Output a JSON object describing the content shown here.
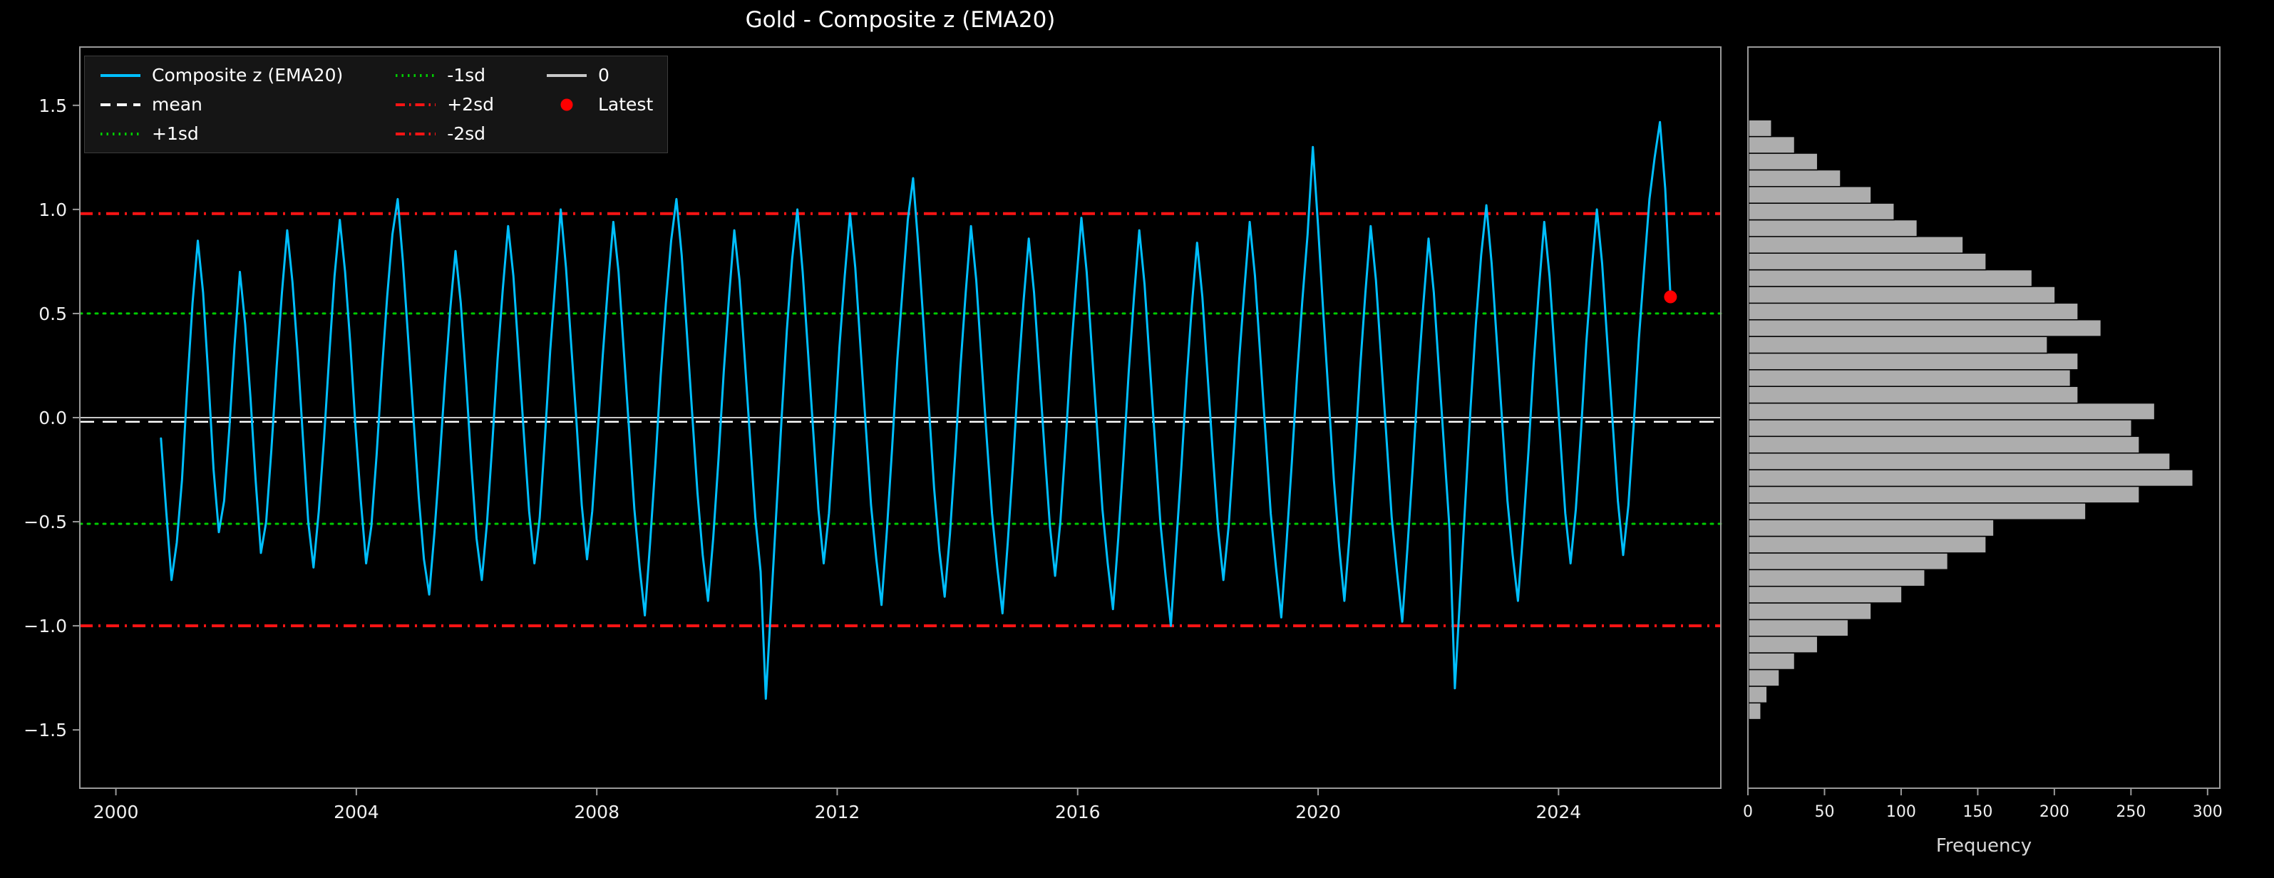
{
  "title": "Gold - Composite z (EMA20)",
  "colors": {
    "background": "#000000",
    "series": "#00BFFF",
    "mean": "#ffffff",
    "sd1": "#00cc00",
    "sd2": "#ff1414",
    "zero": "#c8c8c8",
    "latest": "#ff0000",
    "hist_fill": "#adadad",
    "hist_edge": "#000000",
    "axis": "#999999",
    "tick_text": "#f0f0f0"
  },
  "legend": {
    "items": [
      {
        "label": "Composite z (EMA20)",
        "style": "solid",
        "color": "#00BFFF"
      },
      {
        "label": "mean",
        "style": "dashed",
        "color": "#ffffff"
      },
      {
        "label": "+1sd",
        "style": "dotted",
        "color": "#00cc00"
      },
      {
        "label": "-1sd",
        "style": "dotted",
        "color": "#00cc00"
      },
      {
        "label": "+2sd",
        "style": "dashdot",
        "color": "#ff1414"
      },
      {
        "label": "-2sd",
        "style": "dashdot",
        "color": "#ff1414"
      },
      {
        "label": "0",
        "style": "solid",
        "color": "#c8c8c8"
      },
      {
        "label": "Latest",
        "style": "marker",
        "color": "#ff0000"
      }
    ]
  },
  "chart_data": [
    {
      "type": "line",
      "title": "Gold - Composite z (EMA20)",
      "series_name": "Composite z (EMA20)",
      "x_start": 2000.75,
      "x_step": 0.0875,
      "xlim": [
        1999.4,
        2026.7
      ],
      "ylim": [
        -1.78,
        1.78
      ],
      "x_ticks": [
        2000,
        2004,
        2008,
        2012,
        2016,
        2020,
        2024
      ],
      "x_tick_labels": [
        "2000",
        "2004",
        "2008",
        "2012",
        "2016",
        "2020",
        "2024"
      ],
      "y_ticks": [
        -1.5,
        -1.0,
        -0.5,
        0.0,
        0.5,
        1.0,
        1.5
      ],
      "y_tick_labels": [
        "−1.5",
        "−1.0",
        "−0.5",
        "0.0",
        "0.5",
        "1.0",
        "1.5"
      ],
      "reference_lines": {
        "zero": 0.0,
        "mean": -0.02,
        "plus1sd": 0.5,
        "minus1sd": -0.51,
        "plus2sd": 0.98,
        "minus2sd": -1.0
      },
      "latest_value": 0.58,
      "values": [
        -0.1,
        -0.45,
        -0.78,
        -0.6,
        -0.3,
        0.15,
        0.55,
        0.85,
        0.6,
        0.2,
        -0.25,
        -0.55,
        -0.4,
        -0.05,
        0.35,
        0.7,
        0.45,
        0.1,
        -0.3,
        -0.65,
        -0.5,
        -0.15,
        0.25,
        0.6,
        0.9,
        0.65,
        0.3,
        -0.1,
        -0.5,
        -0.72,
        -0.45,
        -0.1,
        0.3,
        0.68,
        0.95,
        0.7,
        0.35,
        -0.05,
        -0.4,
        -0.7,
        -0.52,
        -0.18,
        0.22,
        0.58,
        0.88,
        1.05,
        0.75,
        0.38,
        0.0,
        -0.38,
        -0.68,
        -0.85,
        -0.55,
        -0.2,
        0.18,
        0.52,
        0.8,
        0.55,
        0.18,
        -0.22,
        -0.58,
        -0.78,
        -0.5,
        -0.12,
        0.28,
        0.62,
        0.92,
        0.68,
        0.3,
        -0.08,
        -0.45,
        -0.7,
        -0.48,
        -0.1,
        0.32,
        0.66,
        1.0,
        0.72,
        0.35,
        -0.02,
        -0.42,
        -0.68,
        -0.45,
        -0.08,
        0.3,
        0.64,
        0.94,
        0.7,
        0.32,
        -0.06,
        -0.44,
        -0.72,
        -0.95,
        -0.6,
        -0.22,
        0.2,
        0.55,
        0.85,
        1.05,
        0.78,
        0.4,
        0.02,
        -0.36,
        -0.66,
        -0.88,
        -0.58,
        -0.2,
        0.22,
        0.58,
        0.9,
        0.66,
        0.28,
        -0.1,
        -0.48,
        -0.74,
        -1.35,
        -0.9,
        -0.45,
        0.0,
        0.42,
        0.76,
        1.0,
        0.7,
        0.32,
        -0.06,
        -0.44,
        -0.7,
        -0.46,
        -0.08,
        0.34,
        0.68,
        0.98,
        0.72,
        0.34,
        -0.04,
        -0.42,
        -0.68,
        -0.9,
        -0.55,
        -0.15,
        0.28,
        0.62,
        0.95,
        1.15,
        0.82,
        0.44,
        0.05,
        -0.34,
        -0.64,
        -0.86,
        -0.56,
        -0.18,
        0.24,
        0.6,
        0.92,
        0.66,
        0.28,
        -0.1,
        -0.46,
        -0.72,
        -0.94,
        -0.6,
        -0.22,
        0.2,
        0.56,
        0.86,
        0.6,
        0.22,
        -0.16,
        -0.52,
        -0.76,
        -0.5,
        -0.12,
        0.3,
        0.64,
        0.96,
        0.7,
        0.32,
        -0.06,
        -0.44,
        -0.7,
        -0.92,
        -0.58,
        -0.2,
        0.22,
        0.58,
        0.9,
        0.64,
        0.26,
        -0.12,
        -0.5,
        -0.76,
        -1.0,
        -0.62,
        -0.24,
        0.18,
        0.54,
        0.84,
        0.58,
        0.2,
        -0.18,
        -0.54,
        -0.78,
        -0.52,
        -0.14,
        0.28,
        0.62,
        0.94,
        0.68,
        0.3,
        -0.08,
        -0.46,
        -0.72,
        -0.96,
        -0.6,
        -0.22,
        0.2,
        0.56,
        0.88,
        1.3,
        0.92,
        0.5,
        0.1,
        -0.3,
        -0.62,
        -0.88,
        -0.56,
        -0.18,
        0.24,
        0.6,
        0.92,
        0.66,
        0.28,
        -0.1,
        -0.48,
        -0.74,
        -0.98,
        -0.62,
        -0.24,
        0.18,
        0.54,
        0.86,
        0.6,
        0.22,
        -0.16,
        -0.54,
        -1.3,
        -0.85,
        -0.4,
        0.05,
        0.45,
        0.78,
        1.02,
        0.74,
        0.36,
        -0.02,
        -0.4,
        -0.66,
        -0.88,
        -0.54,
        -0.16,
        0.26,
        0.62,
        0.94,
        0.68,
        0.3,
        -0.08,
        -0.46,
        -0.7,
        -0.44,
        -0.06,
        0.36,
        0.7,
        1.0,
        0.74,
        0.36,
        -0.02,
        -0.4,
        -0.66,
        -0.42,
        -0.04,
        0.38,
        0.72,
        1.05,
        1.25,
        1.42,
        1.1,
        0.58
      ]
    },
    {
      "type": "bar",
      "orientation": "horizontal",
      "xlabel": "Frequency",
      "xlim": [
        0,
        308
      ],
      "x_ticks": [
        0,
        50,
        100,
        150,
        200,
        250,
        300
      ],
      "x_tick_labels": [
        "0",
        "50",
        "100",
        "150",
        "200",
        "250",
        "300"
      ],
      "bin_start": -1.45,
      "bin_width": 0.08,
      "counts": [
        8,
        12,
        20,
        30,
        45,
        65,
        80,
        100,
        115,
        130,
        155,
        160,
        220,
        255,
        290,
        275,
        255,
        250,
        265,
        215,
        210,
        215,
        195,
        230,
        215,
        200,
        185,
        155,
        140,
        110,
        95,
        80,
        60,
        45,
        30,
        15
      ]
    }
  ]
}
